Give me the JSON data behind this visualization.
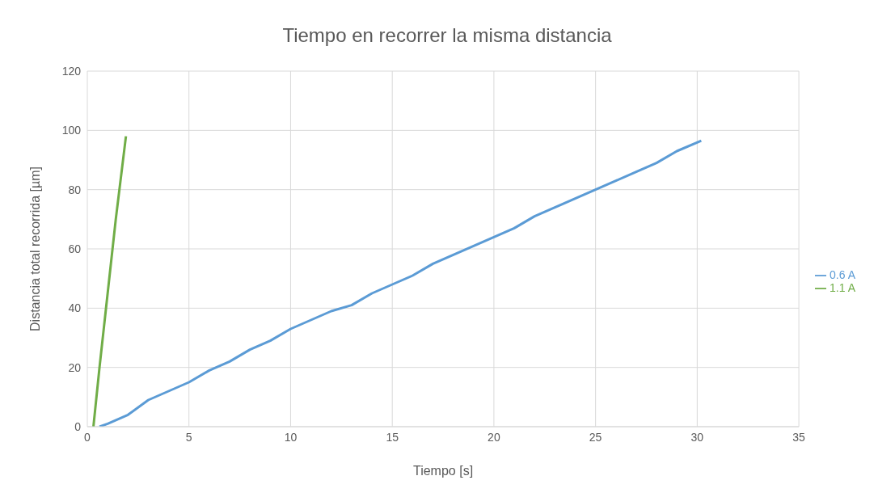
{
  "chart_data": {
    "type": "line",
    "title": "Tiempo en recorrer la misma distancia",
    "xlabel": "Tiempo [s]",
    "ylabel": "Distancia total recorrida  [µm]",
    "xlim": [
      0,
      35
    ],
    "xticks": [
      0,
      5,
      10,
      15,
      20,
      25,
      30,
      35
    ],
    "ylim": [
      0,
      120
    ],
    "yticks": [
      0,
      20,
      40,
      60,
      80,
      100,
      120
    ],
    "grid": true,
    "legend": "right",
    "marker": "none",
    "line_style": "solid",
    "series": [
      {
        "name": "0.6 A",
        "color": "#5b9bd5",
        "x": [
          0.6,
          1,
          2,
          3,
          4,
          5,
          6,
          7,
          8,
          9,
          10,
          11,
          12,
          13,
          14,
          15,
          16,
          17,
          18,
          19,
          20,
          21,
          22,
          23,
          24,
          25,
          26,
          27,
          28,
          29,
          30.2
        ],
        "values": [
          0,
          1,
          4,
          9,
          12,
          15,
          19,
          22,
          26,
          29,
          33,
          36,
          39,
          41,
          45,
          48,
          51,
          55,
          58,
          61,
          64,
          67,
          71,
          74,
          77,
          80,
          83,
          86,
          89,
          93,
          96.5
        ]
      },
      {
        "name": "1.1 A",
        "color": "#70ad47",
        "x": [
          0.3,
          0.6,
          1.0,
          1.4,
          1.9
        ],
        "values": [
          0,
          20,
          45,
          70,
          98
        ]
      }
    ]
  }
}
